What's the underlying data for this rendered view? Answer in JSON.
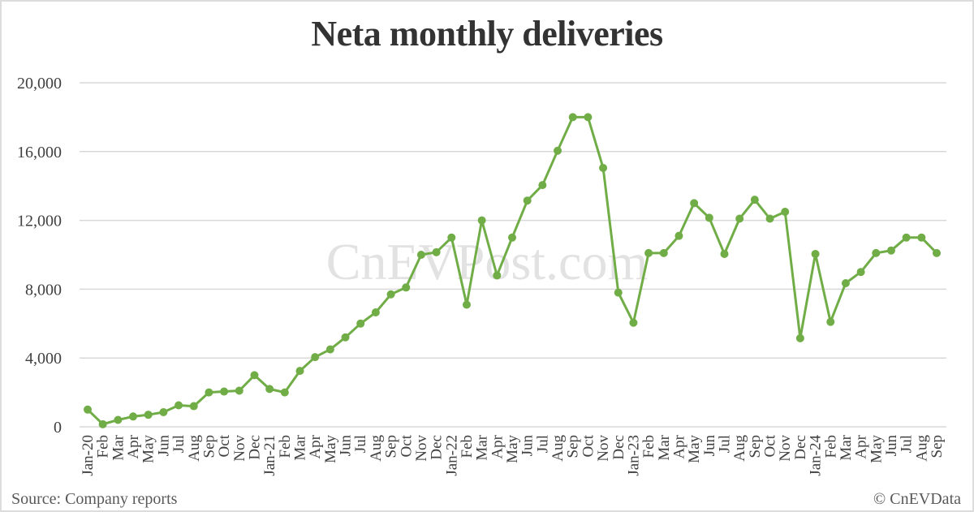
{
  "title": "Neta monthly deliveries",
  "source": "Source: Company reports",
  "credit": "© CnEVData",
  "watermark": "CnEVPost.com",
  "colors": {
    "line": "#70ad47",
    "grid": "#d9d9d9",
    "text": "#404040"
  },
  "chart_data": {
    "type": "line",
    "title": "Neta monthly deliveries",
    "xlabel": "",
    "ylabel": "",
    "ylim": [
      0,
      20000
    ],
    "yticks": [
      0,
      4000,
      8000,
      12000,
      16000,
      20000
    ],
    "ytick_labels": [
      "0",
      "4,000",
      "8,000",
      "12,000",
      "16,000",
      "20,000"
    ],
    "grid": true,
    "legend": "none",
    "categories": [
      "Jan-20",
      "Feb",
      "Mar",
      "Apr",
      "May",
      "Jun",
      "Jul",
      "Aug",
      "Sep",
      "Oct",
      "Nov",
      "Dec",
      "Jan-21",
      "Feb",
      "Mar",
      "Apr",
      "May",
      "Jun",
      "Jul",
      "Aug",
      "Sep",
      "Oct",
      "Nov",
      "Dec",
      "Jan-22",
      "Feb",
      "Mar",
      "Apr",
      "May",
      "Jun",
      "Jul",
      "Aug",
      "Sep",
      "Oct",
      "Nov",
      "Dec",
      "Jan-23",
      "Feb",
      "Mar",
      "Apr",
      "May",
      "Jun",
      "Jul",
      "Aug",
      "Sep",
      "Oct",
      "Nov",
      "Dec",
      "Jan-24",
      "Feb",
      "Mar",
      "Apr",
      "May",
      "Jun",
      "Jul",
      "Aug",
      "Sep"
    ],
    "series": [
      {
        "name": "Neta monthly deliveries",
        "values": [
          1000,
          150,
          400,
          600,
          700,
          850,
          1250,
          1200,
          2000,
          2050,
          2100,
          3000,
          2200,
          2000,
          3250,
          4050,
          4500,
          5200,
          6000,
          6650,
          7700,
          8100,
          10000,
          10150,
          11000,
          7100,
          12000,
          8800,
          11000,
          13150,
          14050,
          16050,
          18000,
          18000,
          15050,
          7800,
          6050,
          10100,
          10100,
          11100,
          13000,
          12150,
          10050,
          12100,
          13200,
          12100,
          12500,
          5150,
          10050,
          6100,
          8350,
          9000,
          10100,
          10250,
          11000,
          11000,
          10100
        ]
      }
    ]
  }
}
